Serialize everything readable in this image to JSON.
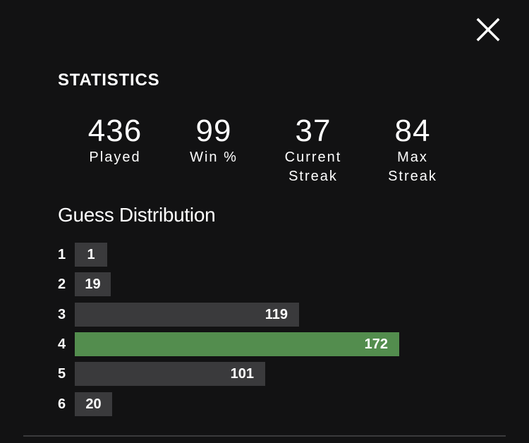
{
  "close_icon": "close-icon",
  "heading": "STATISTICS",
  "stats": [
    {
      "value": "436",
      "label": "Played"
    },
    {
      "value": "99",
      "label": "Win %"
    },
    {
      "value": "37",
      "label": "Current\nStreak"
    },
    {
      "value": "84",
      "label": "Max\nStreak"
    }
  ],
  "distribution": {
    "title": "Guess Distribution",
    "highlight_color": "#538d4e",
    "bar_color": "#3a3a3c",
    "rows": [
      {
        "guess": "1",
        "count": 1
      },
      {
        "guess": "2",
        "count": 19
      },
      {
        "guess": "3",
        "count": 119
      },
      {
        "guess": "4",
        "count": 172,
        "highlighted": true
      },
      {
        "guess": "5",
        "count": 101
      },
      {
        "guess": "6",
        "count": 20
      }
    ]
  }
}
